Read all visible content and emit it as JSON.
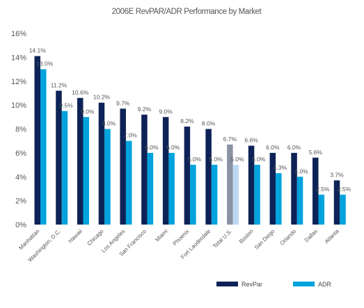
{
  "chart_data": {
    "type": "bar",
    "title": "2006E RevPAR/ADR Performance by Market",
    "xlabel": "",
    "ylabel": "",
    "ylim": [
      0,
      16
    ],
    "yticks": [
      "0%",
      "2%",
      "4%",
      "6%",
      "8%",
      "10%",
      "12%",
      "14%",
      "16%"
    ],
    "grid": false,
    "legend_position": "bottom-right",
    "categories": [
      "Manhattan",
      "Washington, D.C.",
      "Hawaii",
      "Chicago",
      "Los Angeles",
      "San Francisco",
      "Miami",
      "Phoenix",
      "Fort Lauderdale",
      "Total U.S.",
      "Boston",
      "San Diego",
      "Orlando",
      "Dallas",
      "Atlanta"
    ],
    "highlight_category": "Total U.S.",
    "series": [
      {
        "name": "RevPar",
        "color": "#0d2357",
        "highlight_color": "#8a93a4",
        "values": [
          14.1,
          11.2,
          10.6,
          10.2,
          9.7,
          9.2,
          9.0,
          8.2,
          8.0,
          6.7,
          6.6,
          6.0,
          6.0,
          5.6,
          3.7
        ],
        "labels": [
          "14.1%",
          "11.2%",
          "10.6%",
          "10.2%",
          "9.7%",
          "9.2%",
          "9.0%",
          "8.2%",
          "8.0%",
          "6.7%",
          "6.6%",
          "6.0%",
          "6.0%",
          "5.6%",
          "3.7%"
        ]
      },
      {
        "name": "ADR",
        "color": "#00a3dd",
        "highlight_color": "#bcd9f2",
        "values": [
          13.0,
          9.5,
          9.0,
          8.0,
          7.0,
          6.0,
          6.0,
          5.0,
          5.0,
          5.0,
          5.0,
          4.3,
          4.0,
          2.5,
          2.5
        ],
        "labels": [
          "13.0%",
          "9.5%",
          "9.0%",
          "8.0%",
          "7.0%",
          "6.0%",
          "6.0%",
          "5.0%",
          "5.0%",
          "5.0%",
          "5.0%",
          "4.3%",
          "4.0%",
          "2.5%",
          "2.5%"
        ]
      }
    ]
  }
}
